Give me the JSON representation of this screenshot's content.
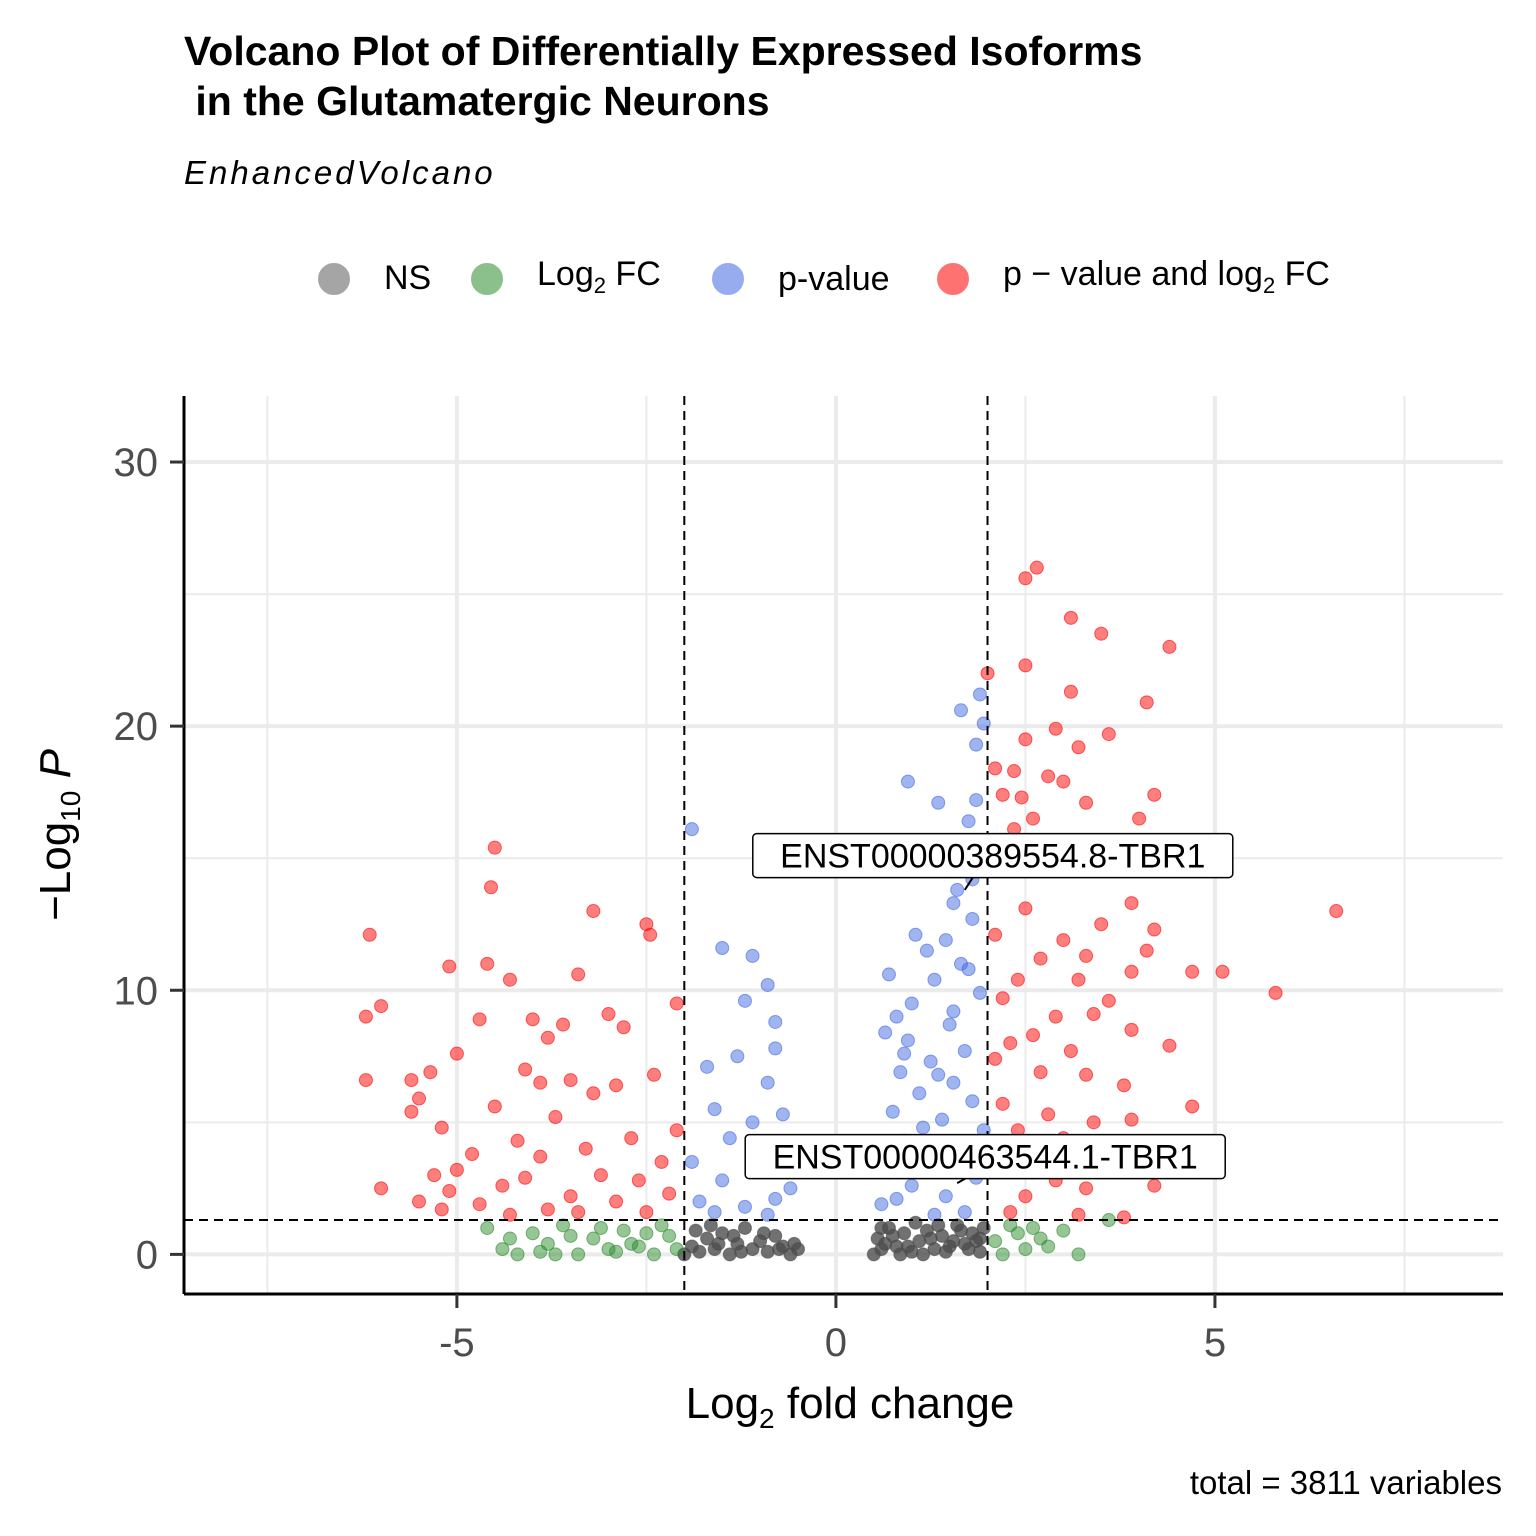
{
  "title_line1": "Volcano Plot of Differentially Expressed Isoforms",
  "title_line2": " in the Glutamatergic Neurons",
  "subtitle": "EnhancedVolcano",
  "legend": [
    {
      "label": "NS",
      "sub": "",
      "suffix": "",
      "color": "#4d4d4d"
    },
    {
      "label": "Log",
      "sub": "2",
      "suffix": " FC",
      "color": "#2e8b2e"
    },
    {
      "label": "p-value",
      "sub": "",
      "suffix": "",
      "color": "#4169e1"
    },
    {
      "label": "p − value and log",
      "sub": "2",
      "suffix": " FC",
      "color": "#ff0000"
    }
  ],
  "caption": "total = 3811 variables",
  "chart_data": {
    "type": "scatter",
    "title": "Volcano Plot of Differentially Expressed Isoforms in the Glutamatergic Neurons",
    "subtitle": "EnhancedVolcano",
    "xlabel": "Log2 fold change",
    "ylabel": "−Log10 P",
    "xlim": [
      -8.6,
      8.8
    ],
    "ylim": [
      -1.5,
      32.5
    ],
    "xticks": [
      -5,
      0,
      5
    ],
    "xtick_labels": [
      "-5",
      "0",
      "5"
    ],
    "yticks": [
      0,
      10,
      20,
      30
    ],
    "ytick_labels": [
      "0",
      "10",
      "20",
      "30"
    ],
    "grid": true,
    "legend_position": "top",
    "fc_cutoff": 2,
    "p_cutoff_log10": 1.3,
    "total_variables": 3811,
    "series_colors": {
      "NS": "#4d4d4d",
      "Log2 FC": "#2e8b2e",
      "p-value": "#4169e1",
      "p - value and log2 FC": "#ff0000"
    },
    "series": [
      {
        "name": "NS",
        "points": [
          [
            -2.0,
            0.0
          ],
          [
            -1.9,
            0.3
          ],
          [
            -1.8,
            0.1
          ],
          [
            -1.7,
            0.6
          ],
          [
            -1.6,
            0.2
          ],
          [
            -1.5,
            0.8
          ],
          [
            -1.4,
            0.0
          ],
          [
            -1.3,
            0.4
          ],
          [
            -1.2,
            1.0
          ],
          [
            -1.1,
            0.2
          ],
          [
            -1.0,
            0.5
          ],
          [
            -0.9,
            0.1
          ],
          [
            -0.8,
            0.7
          ],
          [
            -0.7,
            0.3
          ],
          [
            -0.6,
            0.0
          ],
          [
            -0.5,
            0.2
          ],
          [
            -1.85,
            0.9
          ],
          [
            -1.55,
            0.4
          ],
          [
            -1.25,
            0.1
          ],
          [
            -0.95,
            0.8
          ],
          [
            -0.75,
            0.2
          ],
          [
            -0.55,
            0.4
          ],
          [
            -1.65,
            1.1
          ],
          [
            -1.35,
            0.7
          ],
          [
            0.5,
            0.0
          ],
          [
            0.55,
            0.6
          ],
          [
            0.6,
            0.2
          ],
          [
            0.7,
            1.0
          ],
          [
            0.8,
            0.3
          ],
          [
            0.9,
            0.8
          ],
          [
            1.0,
            0.1
          ],
          [
            1.1,
            0.5
          ],
          [
            1.2,
            0.9
          ],
          [
            1.3,
            0.2
          ],
          [
            1.4,
            0.7
          ],
          [
            1.5,
            0.3
          ],
          [
            1.6,
            1.1
          ],
          [
            1.7,
            0.4
          ],
          [
            1.8,
            0.8
          ],
          [
            1.9,
            0.1
          ],
          [
            1.95,
            1.0
          ],
          [
            0.65,
            0.4
          ],
          [
            0.85,
            0.0
          ],
          [
            1.05,
            1.2
          ],
          [
            1.25,
            0.6
          ],
          [
            1.45,
            0.1
          ],
          [
            1.65,
            0.9
          ],
          [
            1.85,
            0.5
          ],
          [
            0.75,
            0.7
          ],
          [
            0.95,
            0.3
          ],
          [
            1.15,
            0.0
          ],
          [
            1.35,
            1.1
          ],
          [
            1.55,
            0.5
          ],
          [
            1.75,
            0.2
          ],
          [
            0.6,
            1.0
          ],
          [
            1.9,
            0.6
          ]
        ]
      },
      {
        "name": "Log2 FC",
        "points": [
          [
            -4.6,
            1.0
          ],
          [
            -4.4,
            0.2
          ],
          [
            -4.2,
            0.0
          ],
          [
            -4.0,
            0.8
          ],
          [
            -3.8,
            0.4
          ],
          [
            -3.6,
            1.1
          ],
          [
            -3.4,
            0.0
          ],
          [
            -3.2,
            0.6
          ],
          [
            -3.0,
            0.2
          ],
          [
            -2.8,
            0.9
          ],
          [
            -2.6,
            0.3
          ],
          [
            -2.4,
            0.0
          ],
          [
            -2.2,
            0.7
          ],
          [
            -2.1,
            0.2
          ],
          [
            -4.3,
            0.6
          ],
          [
            -3.9,
            0.1
          ],
          [
            -3.5,
            0.7
          ],
          [
            -3.1,
            1.0
          ],
          [
            -2.7,
            0.4
          ],
          [
            -2.3,
            1.1
          ],
          [
            -3.7,
            0.0
          ],
          [
            -2.9,
            0.1
          ],
          [
            -2.5,
            0.8
          ],
          [
            2.1,
            0.5
          ],
          [
            2.2,
            0.0
          ],
          [
            2.4,
            0.8
          ],
          [
            2.5,
            0.2
          ],
          [
            2.6,
            1.0
          ],
          [
            2.8,
            0.3
          ],
          [
            3.0,
            0.9
          ],
          [
            3.2,
            0.0
          ],
          [
            2.3,
            1.1
          ],
          [
            2.7,
            0.6
          ],
          [
            3.6,
            1.3
          ]
        ]
      },
      {
        "name": "p-value",
        "points": [
          [
            -1.9,
            16.1
          ],
          [
            -1.5,
            11.6
          ],
          [
            -1.1,
            11.3
          ],
          [
            -0.9,
            10.2
          ],
          [
            -1.2,
            9.6
          ],
          [
            -0.8,
            8.8
          ],
          [
            -1.3,
            7.5
          ],
          [
            -1.7,
            7.1
          ],
          [
            -0.9,
            6.5
          ],
          [
            -1.6,
            5.5
          ],
          [
            -0.7,
            5.3
          ],
          [
            -1.4,
            4.4
          ],
          [
            -1.9,
            3.5
          ],
          [
            -1.0,
            3.2
          ],
          [
            -1.5,
            2.8
          ],
          [
            -0.6,
            2.5
          ],
          [
            -1.8,
            2.0
          ],
          [
            -0.8,
            2.1
          ],
          [
            -1.2,
            1.8
          ],
          [
            -1.6,
            1.6
          ],
          [
            -0.9,
            1.5
          ],
          [
            -0.7,
            4.2
          ],
          [
            -1.1,
            5.0
          ],
          [
            -0.8,
            7.8
          ],
          [
            1.9,
            21.2
          ],
          [
            1.65,
            20.6
          ],
          [
            1.95,
            20.1
          ],
          [
            1.85,
            19.3
          ],
          [
            0.95,
            17.9
          ],
          [
            1.35,
            17.1
          ],
          [
            1.85,
            17.2
          ],
          [
            1.75,
            16.4
          ],
          [
            1.6,
            15.0
          ],
          [
            1.8,
            14.2
          ],
          [
            1.55,
            13.3
          ],
          [
            1.8,
            12.7
          ],
          [
            1.45,
            11.9
          ],
          [
            1.2,
            11.5
          ],
          [
            1.65,
            11.0
          ],
          [
            0.7,
            10.6
          ],
          [
            1.3,
            10.4
          ],
          [
            1.9,
            9.9
          ],
          [
            1.0,
            9.5
          ],
          [
            0.8,
            9.0
          ],
          [
            1.5,
            8.7
          ],
          [
            0.95,
            8.1
          ],
          [
            1.7,
            7.7
          ],
          [
            1.25,
            7.3
          ],
          [
            0.85,
            6.9
          ],
          [
            1.55,
            6.5
          ],
          [
            1.1,
            6.1
          ],
          [
            1.8,
            5.8
          ],
          [
            0.75,
            5.4
          ],
          [
            1.4,
            5.1
          ],
          [
            1.95,
            4.7
          ],
          [
            0.9,
            4.3
          ],
          [
            1.6,
            3.9
          ],
          [
            1.2,
            3.5
          ],
          [
            0.7,
            3.1
          ],
          [
            1.85,
            2.9
          ],
          [
            1.0,
            2.6
          ],
          [
            1.45,
            2.2
          ],
          [
            0.6,
            1.9
          ],
          [
            1.7,
            1.6
          ],
          [
            1.3,
            1.5
          ],
          [
            0.8,
            2.1
          ],
          [
            1.9,
            3.3
          ],
          [
            1.15,
            4.8
          ],
          [
            0.65,
            8.4
          ],
          [
            1.55,
            9.2
          ],
          [
            1.35,
            6.8
          ],
          [
            0.9,
            7.6
          ],
          [
            1.75,
            10.8
          ],
          [
            1.05,
            12.1
          ],
          [
            1.6,
            13.8
          ]
        ]
      },
      {
        "name": "p - value and log2 FC",
        "points": [
          [
            -4.5,
            15.4
          ],
          [
            -4.55,
            13.9
          ],
          [
            -3.2,
            13.0
          ],
          [
            -2.5,
            12.5
          ],
          [
            -6.15,
            12.1
          ],
          [
            -2.45,
            12.1
          ],
          [
            -4.6,
            11.0
          ],
          [
            -5.1,
            10.9
          ],
          [
            -3.4,
            10.6
          ],
          [
            -4.3,
            10.4
          ],
          [
            -6.0,
            9.4
          ],
          [
            -6.2,
            9.0
          ],
          [
            -2.1,
            9.5
          ],
          [
            -4.7,
            8.9
          ],
          [
            -3.0,
            9.1
          ],
          [
            -4.0,
            8.9
          ],
          [
            -3.6,
            8.7
          ],
          [
            -2.8,
            8.6
          ],
          [
            -3.8,
            8.2
          ],
          [
            -5.0,
            7.6
          ],
          [
            -5.35,
            6.9
          ],
          [
            -5.6,
            6.6
          ],
          [
            -6.2,
            6.6
          ],
          [
            -3.5,
            6.6
          ],
          [
            -2.4,
            6.8
          ],
          [
            -3.9,
            6.5
          ],
          [
            -4.1,
            7.0
          ],
          [
            -5.5,
            5.9
          ],
          [
            -3.2,
            6.1
          ],
          [
            -2.9,
            6.4
          ],
          [
            -4.5,
            5.6
          ],
          [
            -3.7,
            5.2
          ],
          [
            -5.6,
            5.4
          ],
          [
            -4.2,
            4.3
          ],
          [
            -5.2,
            4.8
          ],
          [
            -2.1,
            4.7
          ],
          [
            -3.3,
            4.0
          ],
          [
            -2.7,
            4.4
          ],
          [
            -4.8,
            3.8
          ],
          [
            -3.9,
            3.7
          ],
          [
            -5.0,
            3.2
          ],
          [
            -5.3,
            3.0
          ],
          [
            -2.3,
            3.5
          ],
          [
            -3.1,
            3.0
          ],
          [
            -4.1,
            2.9
          ],
          [
            -6.0,
            2.5
          ],
          [
            -5.1,
            2.4
          ],
          [
            -4.4,
            2.6
          ],
          [
            -3.5,
            2.2
          ],
          [
            -2.6,
            2.8
          ],
          [
            -5.5,
            2.0
          ],
          [
            -4.7,
            1.9
          ],
          [
            -3.8,
            1.7
          ],
          [
            -2.9,
            2.0
          ],
          [
            -2.2,
            2.3
          ],
          [
            -4.3,
            1.5
          ],
          [
            -3.4,
            1.6
          ],
          [
            -2.5,
            1.6
          ],
          [
            -5.2,
            1.7
          ],
          [
            2.0,
            22.0
          ],
          [
            2.65,
            26.0
          ],
          [
            2.5,
            25.6
          ],
          [
            3.1,
            24.1
          ],
          [
            3.5,
            23.5
          ],
          [
            4.4,
            23.0
          ],
          [
            2.5,
            22.3
          ],
          [
            3.1,
            21.3
          ],
          [
            4.1,
            20.9
          ],
          [
            2.9,
            19.9
          ],
          [
            2.5,
            19.5
          ],
          [
            3.2,
            19.2
          ],
          [
            3.6,
            19.7
          ],
          [
            2.1,
            18.4
          ],
          [
            2.35,
            18.3
          ],
          [
            2.8,
            18.1
          ],
          [
            3.0,
            17.9
          ],
          [
            4.2,
            17.4
          ],
          [
            2.45,
            17.3
          ],
          [
            2.2,
            17.4
          ],
          [
            3.3,
            17.1
          ],
          [
            2.6,
            16.5
          ],
          [
            4.0,
            16.5
          ],
          [
            2.35,
            16.1
          ],
          [
            2.9,
            15.3
          ],
          [
            4.1,
            15.6
          ],
          [
            6.6,
            13.0
          ],
          [
            3.9,
            13.3
          ],
          [
            2.5,
            13.1
          ],
          [
            3.5,
            12.5
          ],
          [
            4.2,
            12.3
          ],
          [
            2.1,
            12.1
          ],
          [
            3.0,
            11.9
          ],
          [
            3.3,
            11.3
          ],
          [
            2.7,
            11.2
          ],
          [
            4.1,
            11.5
          ],
          [
            4.7,
            10.7
          ],
          [
            5.1,
            10.7
          ],
          [
            3.9,
            10.7
          ],
          [
            2.4,
            10.4
          ],
          [
            3.2,
            10.4
          ],
          [
            5.8,
            9.9
          ],
          [
            2.2,
            9.7
          ],
          [
            3.6,
            9.6
          ],
          [
            2.9,
            9.0
          ],
          [
            3.4,
            9.1
          ],
          [
            3.9,
            8.5
          ],
          [
            4.4,
            7.9
          ],
          [
            2.3,
            8.0
          ],
          [
            2.6,
            8.3
          ],
          [
            3.1,
            7.7
          ],
          [
            2.1,
            7.4
          ],
          [
            3.3,
            6.8
          ],
          [
            2.7,
            6.9
          ],
          [
            3.8,
            6.4
          ],
          [
            4.7,
            5.6
          ],
          [
            2.2,
            5.7
          ],
          [
            2.8,
            5.3
          ],
          [
            3.4,
            5.0
          ],
          [
            2.4,
            4.7
          ],
          [
            3.9,
            5.1
          ],
          [
            3.0,
            4.4
          ],
          [
            2.1,
            4.0
          ],
          [
            3.6,
            3.8
          ],
          [
            2.7,
            3.5
          ],
          [
            4.2,
            2.6
          ],
          [
            3.3,
            2.5
          ],
          [
            2.5,
            2.2
          ],
          [
            2.9,
            2.8
          ],
          [
            3.8,
            1.4
          ],
          [
            2.3,
            1.6
          ],
          [
            3.2,
            1.5
          ],
          [
            2.6,
            3.1
          ]
        ]
      }
    ],
    "labels": [
      {
        "text": "ENST00000389554.8-TBR1",
        "point": [
          1.7,
          13.8
        ]
      },
      {
        "text": "ENST00000463544.1-TBR1",
        "point": [
          1.6,
          2.7
        ]
      }
    ]
  }
}
